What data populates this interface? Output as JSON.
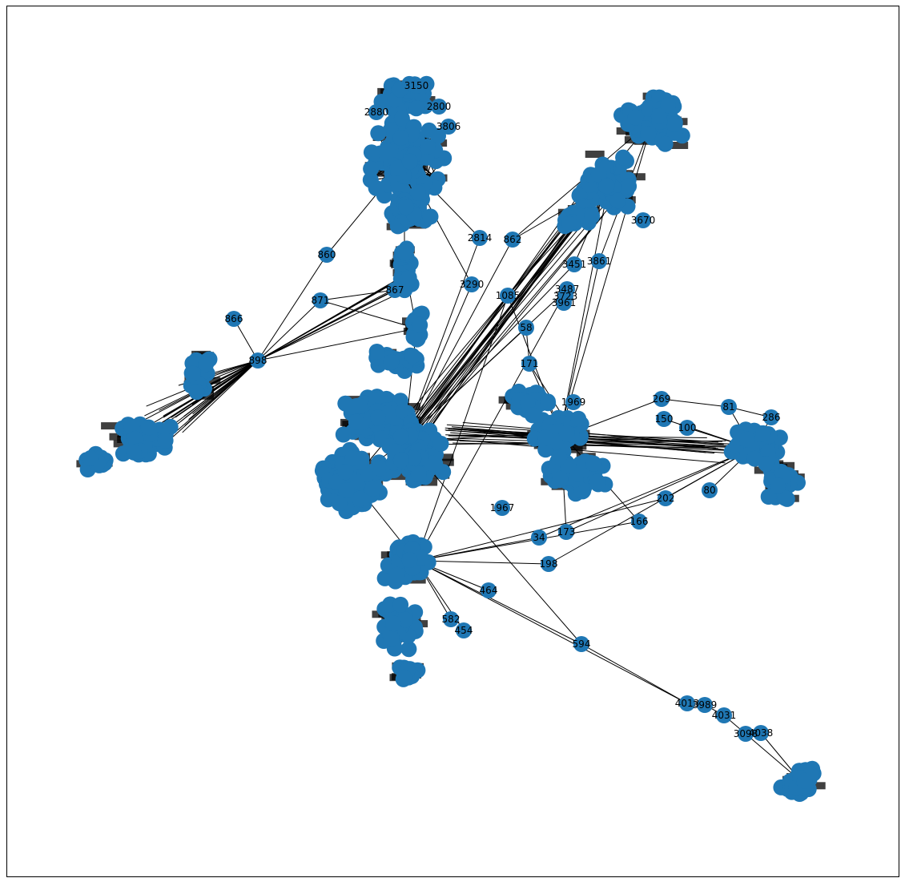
{
  "diagram": {
    "type": "network-graph",
    "node_color": "#1f77b4",
    "edge_color": "#000000",
    "frame_visible": true,
    "axes_ticks": false
  },
  "labeled_nodes": [
    "860",
    "871",
    "898",
    "866",
    "2814",
    "862",
    "3290",
    "1085",
    "58",
    "1967",
    "171",
    "269",
    "81",
    "286",
    "150",
    "100",
    "166",
    "202",
    "80",
    "34",
    "173",
    "198",
    "464",
    "454",
    "582",
    "594",
    "4013",
    "3989",
    "4031",
    "3098",
    "4038",
    "1969",
    "3861",
    "3451",
    "3487",
    "3723",
    "3961",
    "3150",
    "2800",
    "2880",
    "3806",
    "3670",
    "867"
  ]
}
